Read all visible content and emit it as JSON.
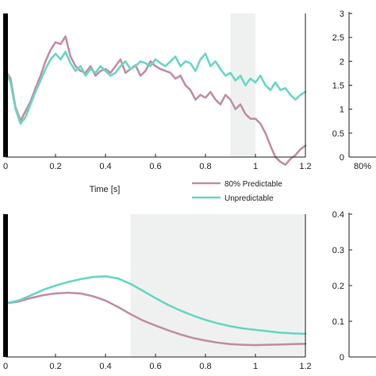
{
  "colors": {
    "predictable": "#c28ea6",
    "unpredictable": "#6ad6c4",
    "shade": "#eef1ef",
    "onset": "#000000",
    "axis": "#222222"
  },
  "chart_data": [
    {
      "id": "top-left",
      "type": "line",
      "xlabel": "Time [s]",
      "ylabel": "",
      "xlim": [
        0,
        1.2
      ],
      "ylim": [
        0.6,
        2.1
      ],
      "xticks": [
        "0",
        "0.2",
        "0.4",
        "0.6",
        "0.8",
        "1",
        "1.2"
      ],
      "xtick_values": [
        0,
        0.2,
        0.4,
        0.6,
        0.8,
        1.0,
        1.2
      ],
      "shaded_region": [
        0.9,
        1.0
      ],
      "onset_marker": 0,
      "series": [
        {
          "name": "80% Predictable",
          "color": "#c28ea6",
          "x": [
            0,
            0.02,
            0.04,
            0.06,
            0.08,
            0.1,
            0.12,
            0.14,
            0.16,
            0.18,
            0.2,
            0.22,
            0.24,
            0.26,
            0.28,
            0.3,
            0.32,
            0.34,
            0.36,
            0.38,
            0.4,
            0.42,
            0.44,
            0.46,
            0.48,
            0.5,
            0.52,
            0.54,
            0.56,
            0.58,
            0.6,
            0.62,
            0.64,
            0.66,
            0.68,
            0.7,
            0.72,
            0.74,
            0.76,
            0.78,
            0.8,
            0.82,
            0.84,
            0.86,
            0.88,
            0.9,
            0.92,
            0.94,
            0.96,
            0.98,
            1.0,
            1.02,
            1.04,
            1.06,
            1.08,
            1.1,
            1.12,
            1.14,
            1.16,
            1.18,
            1.2
          ],
          "y": [
            1.5,
            1.42,
            1.12,
            0.98,
            1.08,
            1.18,
            1.32,
            1.45,
            1.6,
            1.72,
            1.8,
            1.78,
            1.86,
            1.65,
            1.55,
            1.5,
            1.48,
            1.55,
            1.45,
            1.5,
            1.52,
            1.48,
            1.55,
            1.62,
            1.48,
            1.52,
            1.56,
            1.45,
            1.5,
            1.6,
            1.55,
            1.52,
            1.5,
            1.48,
            1.42,
            1.45,
            1.35,
            1.3,
            1.2,
            1.25,
            1.22,
            1.28,
            1.2,
            1.15,
            1.25,
            1.2,
            1.1,
            1.15,
            1.05,
            1.0,
            1.0,
            0.95,
            0.85,
            0.72,
            0.6,
            0.55,
            0.52,
            0.58,
            0.62,
            0.68,
            0.72
          ]
        },
        {
          "name": "Unpredictable",
          "color": "#6ad6c4",
          "x": [
            0,
            0.02,
            0.04,
            0.06,
            0.08,
            0.1,
            0.12,
            0.14,
            0.16,
            0.18,
            0.2,
            0.22,
            0.24,
            0.26,
            0.28,
            0.3,
            0.32,
            0.34,
            0.36,
            0.38,
            0.4,
            0.42,
            0.44,
            0.46,
            0.48,
            0.5,
            0.52,
            0.54,
            0.56,
            0.58,
            0.6,
            0.62,
            0.64,
            0.66,
            0.68,
            0.7,
            0.72,
            0.74,
            0.76,
            0.78,
            0.8,
            0.82,
            0.84,
            0.86,
            0.88,
            0.9,
            0.92,
            0.94,
            0.96,
            0.98,
            1.0,
            1.02,
            1.04,
            1.06,
            1.08,
            1.1,
            1.12,
            1.14,
            1.16,
            1.18,
            1.2
          ],
          "y": [
            1.5,
            1.38,
            1.1,
            0.95,
            1.02,
            1.15,
            1.28,
            1.4,
            1.52,
            1.62,
            1.68,
            1.62,
            1.7,
            1.58,
            1.5,
            1.55,
            1.45,
            1.52,
            1.48,
            1.55,
            1.5,
            1.45,
            1.48,
            1.55,
            1.6,
            1.52,
            1.55,
            1.6,
            1.58,
            1.55,
            1.62,
            1.58,
            1.55,
            1.6,
            1.65,
            1.55,
            1.6,
            1.58,
            1.5,
            1.62,
            1.68,
            1.55,
            1.6,
            1.52,
            1.45,
            1.48,
            1.4,
            1.45,
            1.35,
            1.42,
            1.38,
            1.45,
            1.35,
            1.3,
            1.38,
            1.3,
            1.32,
            1.25,
            1.2,
            1.25,
            1.28
          ]
        }
      ]
    },
    {
      "id": "top-right",
      "type": "bar",
      "ylim": [
        0,
        3
      ],
      "yticks": [
        "0",
        "0.5",
        "1",
        "1.5",
        "2",
        "2.5",
        "3"
      ],
      "ytick_values": [
        0,
        0.5,
        1,
        1.5,
        2,
        2.5,
        3
      ],
      "categories": [
        "80%"
      ]
    },
    {
      "id": "bottom-left",
      "type": "line",
      "xlim": [
        0,
        1.2
      ],
      "ylim": [
        0,
        0.4
      ],
      "xticks": [
        "0",
        "0.2",
        "0.4",
        "0.6",
        "0.8",
        "1",
        "1.2"
      ],
      "xtick_values": [
        0,
        0.2,
        0.4,
        0.6,
        0.8,
        1.0,
        1.2
      ],
      "shaded_region": [
        0.5,
        1.2
      ],
      "onset_marker": 0,
      "series": [
        {
          "name": "80% Predictable",
          "color": "#c28ea6",
          "x": [
            0,
            0.05,
            0.1,
            0.15,
            0.2,
            0.25,
            0.3,
            0.35,
            0.4,
            0.45,
            0.5,
            0.55,
            0.6,
            0.65,
            0.7,
            0.75,
            0.8,
            0.85,
            0.9,
            0.95,
            1.0,
            1.05,
            1.1,
            1.15,
            1.2
          ],
          "y": [
            0.15,
            0.155,
            0.165,
            0.173,
            0.178,
            0.18,
            0.178,
            0.17,
            0.158,
            0.14,
            0.12,
            0.102,
            0.088,
            0.075,
            0.063,
            0.053,
            0.046,
            0.04,
            0.036,
            0.034,
            0.033,
            0.034,
            0.035,
            0.036,
            0.037
          ]
        },
        {
          "name": "Unpredictable",
          "color": "#6ad6c4",
          "x": [
            0,
            0.05,
            0.1,
            0.15,
            0.2,
            0.25,
            0.3,
            0.35,
            0.4,
            0.45,
            0.5,
            0.55,
            0.6,
            0.65,
            0.7,
            0.75,
            0.8,
            0.85,
            0.9,
            0.95,
            1.0,
            1.05,
            1.1,
            1.15,
            1.2
          ],
          "y": [
            0.15,
            0.158,
            0.172,
            0.188,
            0.2,
            0.21,
            0.218,
            0.224,
            0.226,
            0.22,
            0.205,
            0.185,
            0.165,
            0.146,
            0.13,
            0.116,
            0.104,
            0.094,
            0.086,
            0.08,
            0.076,
            0.072,
            0.068,
            0.066,
            0.065
          ]
        }
      ]
    },
    {
      "id": "bottom-right",
      "type": "bar",
      "ylim": [
        0,
        0.4
      ],
      "yticks": [
        "0",
        "0.1",
        "0.2",
        "0.3",
        "0.4"
      ],
      "ytick_values": [
        0,
        0.1,
        0.2,
        0.3,
        0.4
      ]
    }
  ],
  "legend": {
    "entries": [
      {
        "name": "80% Predictable",
        "color": "#c28ea6"
      },
      {
        "name": "Unpredictable",
        "color": "#6ad6c4"
      }
    ]
  }
}
